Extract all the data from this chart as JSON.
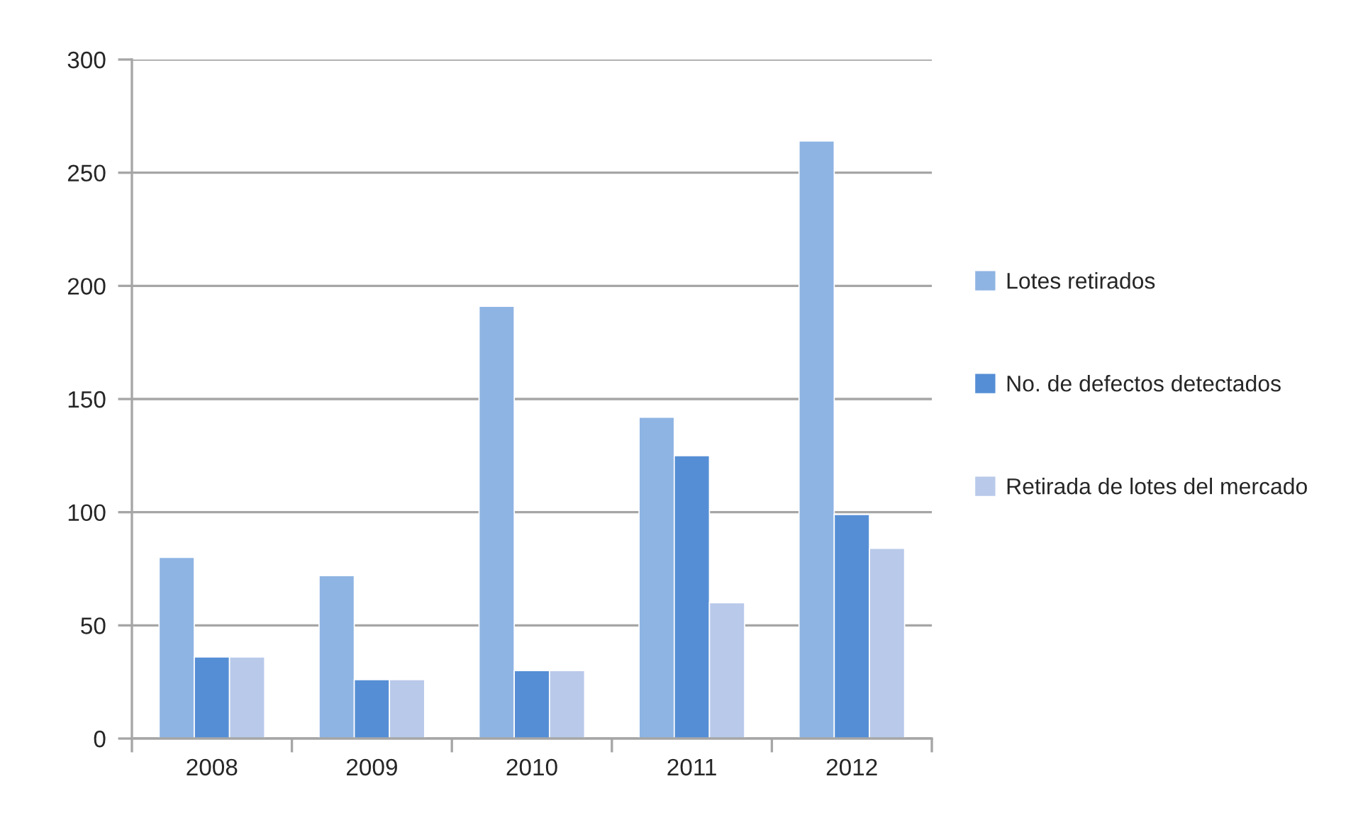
{
  "chart_data": {
    "type": "bar",
    "categories": [
      "2008",
      "2009",
      "2010",
      "2011",
      "2012"
    ],
    "series": [
      {
        "name": "Lotes retirados",
        "color": "#8eb4e3",
        "values": [
          80,
          72,
          191,
          142,
          264
        ]
      },
      {
        "name": "No. de defectos detectados",
        "color": "#558ed5",
        "values": [
          36,
          26,
          30,
          125,
          99
        ]
      },
      {
        "name": "Retirada de lotes del mercado",
        "color": "#b9c9ea",
        "values": [
          36,
          26,
          30,
          60,
          84
        ]
      }
    ],
    "ylim": [
      0,
      300
    ],
    "yticks": [
      0,
      50,
      100,
      150,
      200,
      250,
      300
    ],
    "grid": "y",
    "legend": "right"
  }
}
